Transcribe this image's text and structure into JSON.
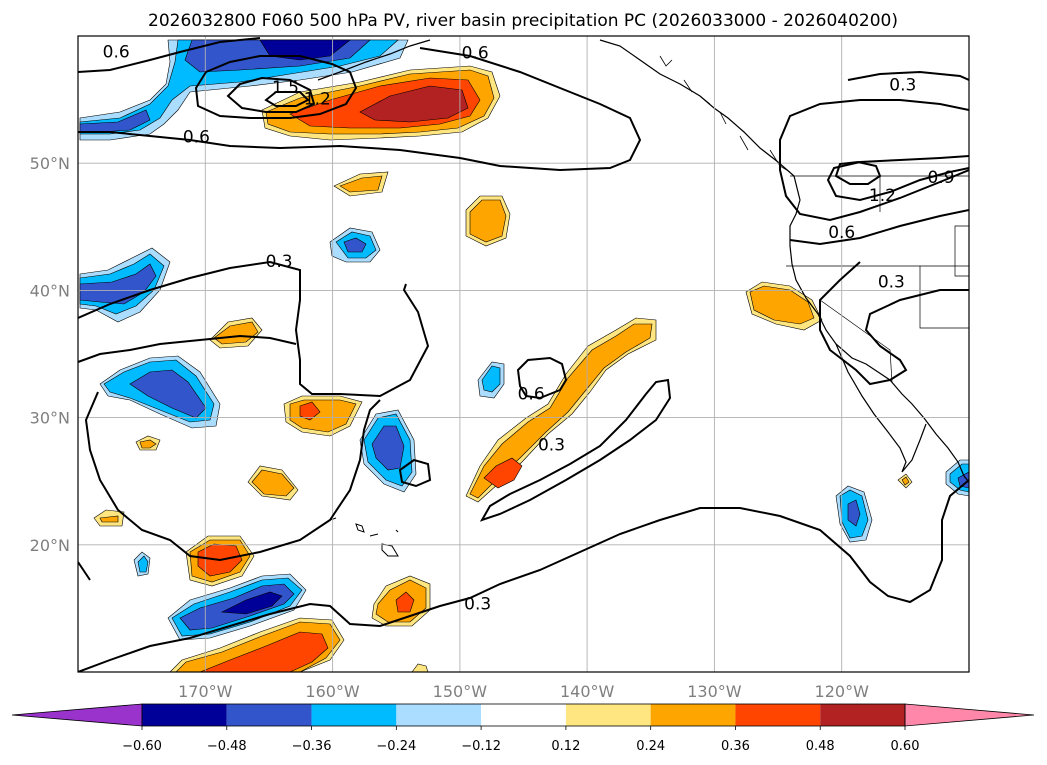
{
  "chart_data": {
    "type": "contour_map",
    "title": "2026032800 F060 500 hPa PV, river basin precipitation PC (2026033000 - 2026040200)",
    "extent": {
      "lon": [
        -180,
        -110
      ],
      "lat": [
        10,
        60
      ]
    },
    "grid": true,
    "x_ticks": [
      {
        "value": -170,
        "label": "170°W"
      },
      {
        "value": -160,
        "label": "160°W"
      },
      {
        "value": -150,
        "label": "150°W"
      },
      {
        "value": -140,
        "label": "140°W"
      },
      {
        "value": -130,
        "label": "130°W"
      },
      {
        "value": -120,
        "label": "120°W"
      }
    ],
    "y_ticks": [
      {
        "value": 20,
        "label": "20°N"
      },
      {
        "value": 30,
        "label": "30°N"
      },
      {
        "value": 40,
        "label": "40°N"
      },
      {
        "value": 50,
        "label": "50°N"
      }
    ],
    "pv_contour_levels": [
      0.3,
      0.6,
      0.9,
      1.2,
      1.5
    ],
    "pv_contour_labels": [
      {
        "text": "0.6",
        "lon": -177.0,
        "lat": 58.8
      },
      {
        "text": "0.6",
        "lon": -148.8,
        "lat": 58.7
      },
      {
        "text": "0.3",
        "lon": -115.2,
        "lat": 56.2
      },
      {
        "text": "1.5",
        "lon": -163.7,
        "lat": 56.0
      },
      {
        "text": "1.2",
        "lon": -161.2,
        "lat": 55.1
      },
      {
        "text": "0.6",
        "lon": -170.7,
        "lat": 52.1
      },
      {
        "text": "1.2",
        "lon": -116.8,
        "lat": 47.5
      },
      {
        "text": "0.9",
        "lon": -112.2,
        "lat": 48.9
      },
      {
        "text": "0.6",
        "lon": -120.0,
        "lat": 44.6
      },
      {
        "text": "0.3",
        "lon": -116.1,
        "lat": 40.7
      },
      {
        "text": "0.3",
        "lon": -164.2,
        "lat": 42.3
      },
      {
        "text": "0.6",
        "lon": -144.4,
        "lat": 31.9
      },
      {
        "text": "0.3",
        "lon": -142.8,
        "lat": 27.9
      },
      {
        "text": "0.3",
        "lon": -148.6,
        "lat": 15.4
      }
    ],
    "colorbar": {
      "levels": [
        -0.6,
        -0.48,
        -0.36,
        -0.24,
        -0.12,
        0.12,
        0.24,
        0.36,
        0.48,
        0.6
      ],
      "tick_labels": [
        "−0.60",
        "−0.48",
        "−0.36",
        "−0.24",
        "−0.12",
        "0.12",
        "0.24",
        "0.36",
        "0.48",
        "0.60"
      ],
      "colors": [
        "#9933cc",
        "#000099",
        "#3355cc",
        "#00bbff",
        "#aaddff",
        "#ffffff",
        "#ffe680",
        "#ffa500",
        "#ff4500",
        "#b22222",
        "#ff88aa"
      ],
      "extend": "both"
    },
    "precip_pc_anomalies": [
      {
        "sign": "neg",
        "lon": -160.5,
        "lat": 57.3,
        "peak": -0.55
      },
      {
        "sign": "neg",
        "lon": -176.0,
        "lat": 53.3,
        "peak": -0.4
      },
      {
        "sign": "pos",
        "lon": -152.5,
        "lat": 54.5,
        "peak": 0.52
      },
      {
        "sign": "pos",
        "lon": -155.5,
        "lat": 48.1,
        "peak": 0.3
      },
      {
        "sign": "pos",
        "lon": -147.9,
        "lat": 45.7,
        "peak": 0.3
      },
      {
        "sign": "neg",
        "lon": -156.4,
        "lat": 43.6,
        "peak": -0.4
      },
      {
        "sign": "neg",
        "lon": -175.5,
        "lat": 40.2,
        "peak": -0.4
      },
      {
        "sign": "pos",
        "lon": -164.2,
        "lat": 36.7,
        "peak": 0.3
      },
      {
        "sign": "pos",
        "lon": -122.5,
        "lat": 38.8,
        "peak": 0.3
      },
      {
        "sign": "pos",
        "lon": -139.3,
        "lat": 32.5,
        "peak": 0.3
      },
      {
        "sign": "neg",
        "lon": -149.0,
        "lat": 32.1,
        "peak": -0.28
      },
      {
        "sign": "neg",
        "lon": -167.2,
        "lat": 32.2,
        "peak": -0.45
      },
      {
        "sign": "pos",
        "lon": -158.5,
        "lat": 29.9,
        "peak": 0.38
      },
      {
        "sign": "neg",
        "lon": -154.4,
        "lat": 27.9,
        "peak": -0.4
      },
      {
        "sign": "pos",
        "lon": -145.2,
        "lat": 26.3,
        "peak": 0.4
      },
      {
        "sign": "pos",
        "lon": -166.7,
        "lat": 24.9,
        "peak": 0.3
      },
      {
        "sign": "pos",
        "lon": -174.9,
        "lat": 27.6,
        "peak": 0.2
      },
      {
        "sign": "pos",
        "lon": -178.0,
        "lat": 22.0,
        "peak": 0.2
      },
      {
        "sign": "neg",
        "lon": -119.9,
        "lat": 22.6,
        "peak": -0.4
      },
      {
        "sign": "neg",
        "lon": -111.0,
        "lat": 25.0,
        "peak": -0.3
      },
      {
        "sign": "pos",
        "lon": -168.1,
        "lat": 19.1,
        "peak": 0.42
      },
      {
        "sign": "neg",
        "lon": -174.0,
        "lat": 18.6,
        "peak": -0.2
      },
      {
        "sign": "neg",
        "lon": -165.0,
        "lat": 15.3,
        "peak": -0.55
      },
      {
        "sign": "pos",
        "lon": -154.8,
        "lat": 15.2,
        "peak": 0.38
      },
      {
        "sign": "pos",
        "lon": -164.7,
        "lat": 12.2,
        "peak": 0.45
      },
      {
        "sign": "pos",
        "lon": -115.6,
        "lat": 25.1,
        "peak": 0.2
      }
    ]
  }
}
